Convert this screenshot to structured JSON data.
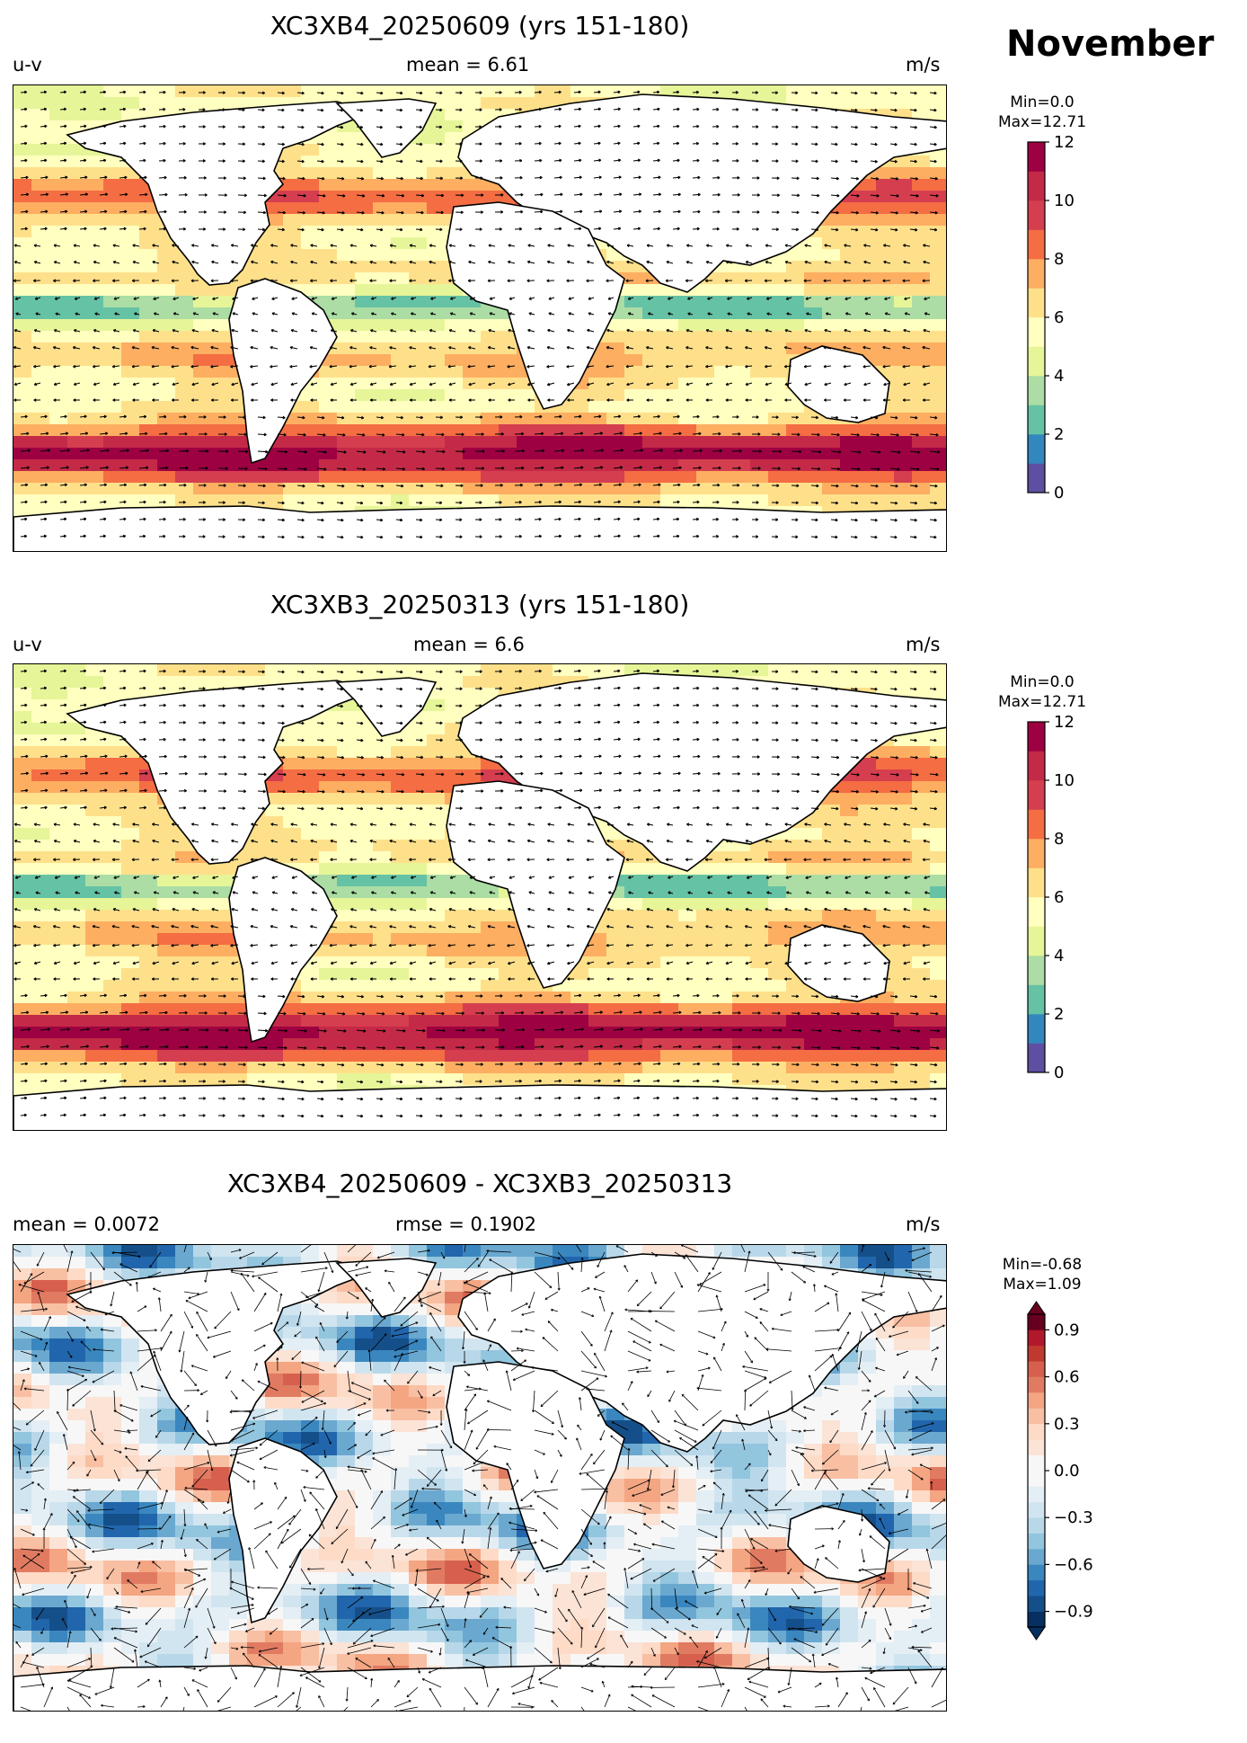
{
  "figure": {
    "month": "November",
    "units": "m/s"
  },
  "panels": [
    {
      "title": "XC3XB4_20250609 (yrs 151-180)",
      "left_label": "u-v",
      "center_label": "mean = 6.61",
      "right_label": "m/s",
      "min_label": "Min=0.0",
      "max_label": "Max=12.71"
    },
    {
      "title": "XC3XB3_20250313 (yrs 151-180)",
      "left_label": "u-v",
      "center_label": "mean = 6.6",
      "right_label": "m/s",
      "min_label": "Min=0.0",
      "max_label": "Max=12.71"
    },
    {
      "title": "XC3XB4_20250609 - XC3XB3_20250313",
      "left_label": "mean = 0.0072",
      "center_label": "rmse = 0.1902",
      "right_label": "m/s",
      "min_label": "Min=-0.68",
      "max_label": "Max=1.09"
    }
  ],
  "chart_data": [
    {
      "type": "heatmap",
      "title": "XC3XB4_20250609 (yrs 151-180)",
      "variable": "u-v wind speed",
      "mean": 6.61,
      "min": 0.0,
      "max": 12.71,
      "colorbar": {
        "levels": [
          0,
          1,
          2,
          3,
          4,
          5,
          6,
          7,
          8,
          9,
          10,
          11,
          12
        ],
        "ticks": [
          "0",
          "2",
          "4",
          "6",
          "8",
          "10",
          "12"
        ],
        "colors": [
          "#5e4fa2",
          "#3288bd",
          "#66c2a5",
          "#abdda4",
          "#e6f598",
          "#ffffbf",
          "#fee08b",
          "#fdae61",
          "#f46d43",
          "#d53e4f",
          "#c42a47",
          "#9e0142"
        ]
      }
    },
    {
      "type": "heatmap",
      "title": "XC3XB3_20250313 (yrs 151-180)",
      "variable": "u-v wind speed",
      "mean": 6.6,
      "min": 0.0,
      "max": 12.71,
      "colorbar": {
        "levels": [
          0,
          1,
          2,
          3,
          4,
          5,
          6,
          7,
          8,
          9,
          10,
          11,
          12
        ],
        "ticks": [
          "0",
          "2",
          "4",
          "6",
          "8",
          "10",
          "12"
        ],
        "colors": [
          "#5e4fa2",
          "#3288bd",
          "#66c2a5",
          "#abdda4",
          "#e6f598",
          "#ffffbf",
          "#fee08b",
          "#fdae61",
          "#f46d43",
          "#d53e4f",
          "#c42a47",
          "#9e0142"
        ]
      }
    },
    {
      "type": "heatmap",
      "title": "XC3XB4_20250609 - XC3XB3_20250313",
      "variable": "u-v wind speed difference",
      "mean": 0.0072,
      "rmse": 0.1902,
      "min": -0.68,
      "max": 1.09,
      "colorbar": {
        "levels": [
          -1.0,
          -0.9,
          -0.8,
          -0.7,
          -0.6,
          -0.5,
          -0.4,
          -0.3,
          -0.2,
          -0.1,
          0.0,
          0.1,
          0.2,
          0.3,
          0.4,
          0.5,
          0.6,
          0.7,
          0.8,
          0.9,
          1.0
        ],
        "ticks": [
          "−0.9",
          "−0.6",
          "−0.3",
          "0.0",
          "0.3",
          "0.6",
          "0.9"
        ],
        "colors": [
          "#053061",
          "#154f8a",
          "#2166ac",
          "#3a87bf",
          "#6aa8d0",
          "#92c5de",
          "#b8d8ea",
          "#d1e5f0",
          "#e4eef5",
          "#f7f7f7",
          "#f7f7f7",
          "#fbe3d6",
          "#fddbc7",
          "#f8bfa3",
          "#f4a582",
          "#e07b62",
          "#d6604d",
          "#c0392f",
          "#b2182b",
          "#67001f"
        ]
      }
    }
  ]
}
